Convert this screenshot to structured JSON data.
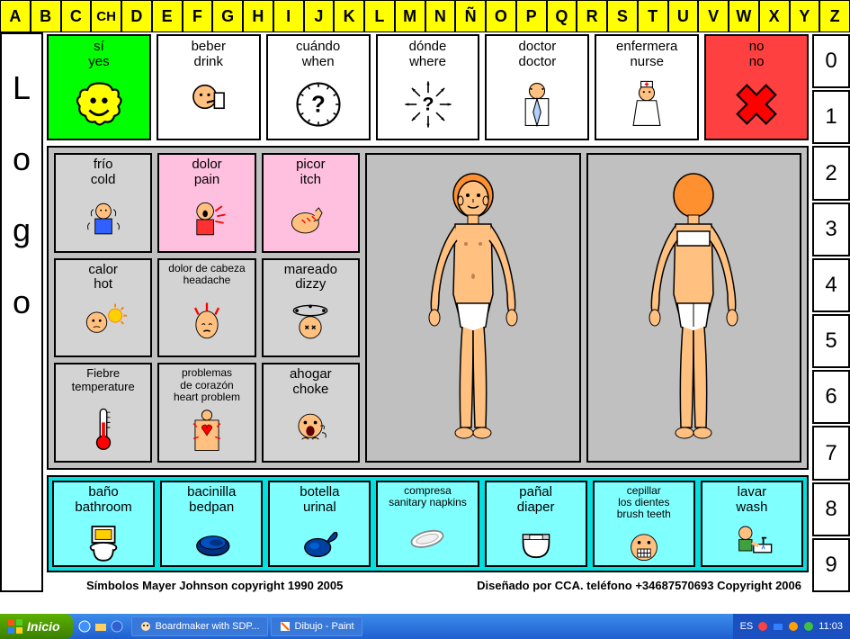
{
  "alphabet": [
    "A",
    "B",
    "C",
    "CH",
    "D",
    "E",
    "F",
    "G",
    "H",
    "I",
    "J",
    "K",
    "L",
    "M",
    "N",
    "Ñ",
    "O",
    "P",
    "Q",
    "R",
    "S",
    "T",
    "U",
    "V",
    "W",
    "X",
    "Y",
    "Z"
  ],
  "numbers": [
    "0",
    "1",
    "2",
    "3",
    "4",
    "5",
    "6",
    "7",
    "8",
    "9"
  ],
  "logo": "Logo",
  "top_cards": [
    {
      "es": "sí",
      "en": "yes",
      "bg": "green",
      "icon": "smile"
    },
    {
      "es": "beber",
      "en": "drink",
      "bg": "white",
      "icon": "drink"
    },
    {
      "es": "cuándo",
      "en": "when",
      "bg": "white",
      "icon": "clock"
    },
    {
      "es": "dónde",
      "en": "where",
      "bg": "white",
      "icon": "arrows"
    },
    {
      "es": "doctor",
      "en": "doctor",
      "bg": "white",
      "icon": "doctor"
    },
    {
      "es": "enfermera",
      "en": "nurse",
      "bg": "white",
      "icon": "nurse"
    },
    {
      "es": "no",
      "en": "no",
      "bg": "red",
      "icon": "x"
    }
  ],
  "mid_cards": [
    {
      "es": "frío",
      "en": "cold",
      "bg": "gray",
      "icon": "cold"
    },
    {
      "es": "dolor",
      "en": "pain",
      "bg": "pink",
      "icon": "pain"
    },
    {
      "es": "picor",
      "en": "itch",
      "bg": "pink",
      "icon": "itch"
    },
    {
      "es": "calor",
      "en": "hot",
      "bg": "gray",
      "icon": "hot"
    },
    {
      "es": "dolor de cabeza",
      "en": "headache",
      "bg": "gray",
      "icon": "headache",
      "small": true
    },
    {
      "es": "mareado",
      "en": "dizzy",
      "bg": "gray",
      "icon": "dizzy"
    },
    {
      "es": "Fiebre",
      "en": "temperature",
      "bg": "gray",
      "icon": "thermo",
      "small2": true
    },
    {
      "es": "problemas\nde corazón",
      "en": "heart problem",
      "bg": "gray",
      "icon": "heart",
      "small": true
    },
    {
      "es": "ahogar",
      "en": "choke",
      "bg": "gray",
      "icon": "choke"
    }
  ],
  "bot_cards": [
    {
      "es": "baño",
      "en": "bathroom",
      "icon": "toilet"
    },
    {
      "es": "bacinilla",
      "en": "bedpan",
      "icon": "bedpan"
    },
    {
      "es": "botella",
      "en": "urinal",
      "icon": "urinal"
    },
    {
      "es": "compresa",
      "en": "sanitary napkins",
      "icon": "pad",
      "small": true
    },
    {
      "es": "pañal",
      "en": "diaper",
      "icon": "diaper"
    },
    {
      "es": "cepillar\nlos dientes",
      "en": "brush teeth",
      "icon": "teeth",
      "small": true
    },
    {
      "es": "lavar",
      "en": "wash",
      "icon": "wash"
    }
  ],
  "copyright_left": "Símbolos Mayer Johnson copyright 1990 2005",
  "copyright_right": "Diseñado por CCA. teléfono  +34687570693   Copyright 2006",
  "taskbar": {
    "start": "Inicio",
    "task1": "Boardmaker with SDP...",
    "task2": "Dibujo - Paint",
    "lang": "ES",
    "time": "11:03"
  },
  "colors": {
    "yellow": "#ffff00",
    "green": "#00ff00",
    "red": "#ff4040",
    "pink": "#ffc0e0",
    "gray": "#c0c0c0",
    "lgray": "#d3d3d3",
    "cyan": "#80ffff",
    "skin": "#ffc080",
    "hair": "#ff9030"
  }
}
